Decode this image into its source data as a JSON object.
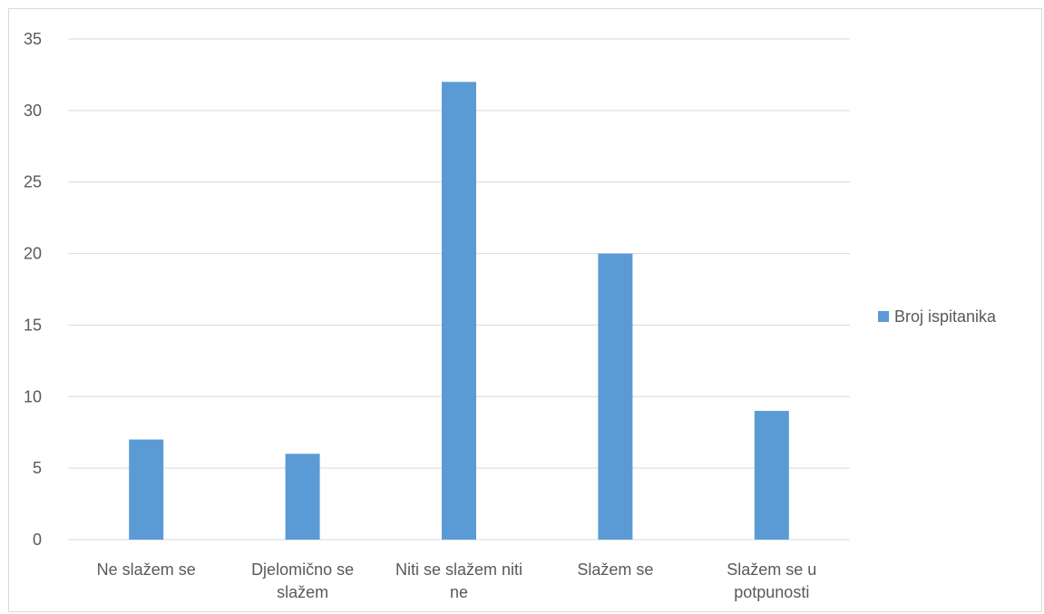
{
  "chart_data": {
    "type": "bar",
    "categories": [
      [
        "Ne slažem se"
      ],
      [
        "Djelomično se",
        "slažem"
      ],
      [
        "Niti se slažem niti",
        "ne"
      ],
      [
        "Slažem se"
      ],
      [
        "Slažem se u",
        "potpunosti"
      ]
    ],
    "series": [
      {
        "name": "Broj ispitanika",
        "values": [
          7,
          6,
          32,
          20,
          9
        ],
        "color": "#5b9bd5"
      }
    ],
    "ylim": [
      0,
      35
    ],
    "yticks": [
      0,
      5,
      10,
      15,
      20,
      25,
      30,
      35
    ],
    "grid": true,
    "legend": "right"
  }
}
